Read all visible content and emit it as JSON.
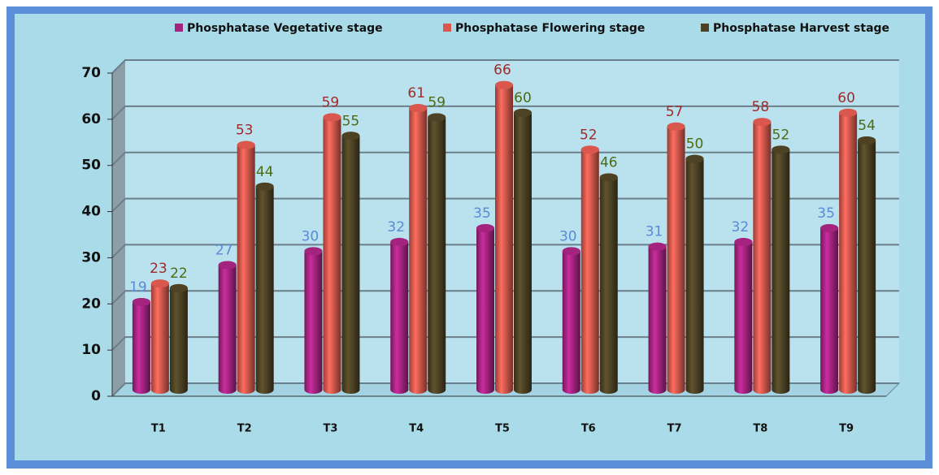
{
  "chart_data": {
    "type": "bar",
    "categories": [
      "T1",
      "T2",
      "T3",
      "T4",
      "T5",
      "T6",
      "T7",
      "T8",
      "T9"
    ],
    "series": [
      {
        "name": "Phosphatase Vegetative stage",
        "color": "#a3237f",
        "label_color": "#5b8ad6",
        "values": [
          19,
          27,
          30,
          32,
          35,
          30,
          31,
          32,
          35
        ]
      },
      {
        "name": "Phosphatase Flowering stage",
        "color": "#d9574c",
        "label_color": "#a02a2a",
        "values": [
          23,
          53,
          59,
          61,
          66,
          52,
          57,
          58,
          60
        ]
      },
      {
        "name": "Phosphatase Harvest stage",
        "color": "#4d4224",
        "label_color": "#4e6a12",
        "values": [
          22,
          44,
          55,
          59,
          60,
          46,
          50,
          52,
          54
        ]
      }
    ],
    "ylim": [
      0,
      70
    ],
    "yticks": [
      0,
      10,
      20,
      30,
      40,
      50,
      60,
      70
    ],
    "grid": true,
    "legend": "top"
  }
}
